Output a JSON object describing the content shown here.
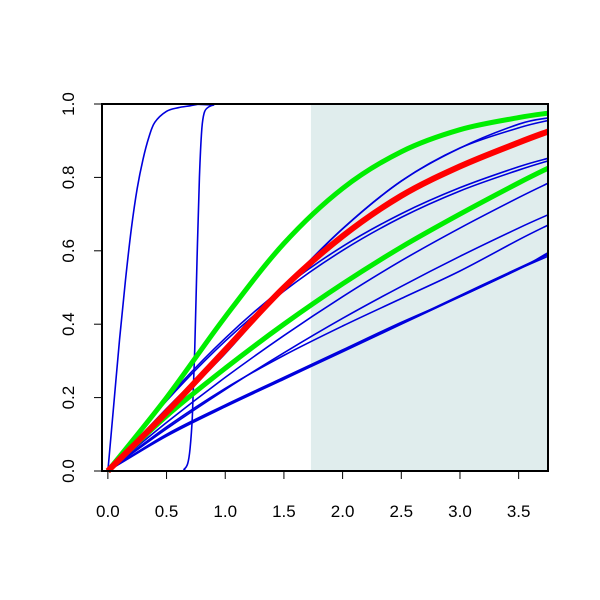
{
  "chart_data": {
    "type": "line",
    "title": "",
    "xlabel": "",
    "ylabel": "",
    "xlim": [
      -0.05,
      3.75
    ],
    "ylim": [
      0,
      1
    ],
    "x_ticks": [
      0.0,
      0.5,
      1.0,
      1.5,
      2.0,
      2.5,
      3.0,
      3.5
    ],
    "x_tick_labels": [
      "0.0",
      "0.5",
      "1.0",
      "1.5",
      "2.0",
      "2.5",
      "3.0",
      "3.5"
    ],
    "y_ticks": [
      0.0,
      0.2,
      0.4,
      0.6,
      0.8,
      1.0
    ],
    "y_tick_labels": [
      "0.0",
      "0.2",
      "0.4",
      "0.6",
      "0.8",
      "1.0"
    ],
    "shaded_region": {
      "x_from": 1.73,
      "x_to": 3.75,
      "color": "#e0eded"
    },
    "grid": false,
    "colors": {
      "blue": "#0000dd",
      "red": "#ff0000",
      "green": "#00ee00"
    },
    "series": [
      {
        "color": "#0000dd",
        "width": 1.6,
        "x": [
          0,
          0.05,
          0.1,
          0.15,
          0.2,
          0.25,
          0.3,
          0.35,
          0.4,
          0.5,
          0.6,
          0.7,
          0.8,
          1.0,
          3.75
        ],
        "y": [
          0,
          0.18,
          0.36,
          0.52,
          0.66,
          0.77,
          0.85,
          0.91,
          0.95,
          0.98,
          0.99,
          0.995,
          1.0,
          1.0,
          1.0
        ]
      },
      {
        "color": "#0000dd",
        "width": 1.6,
        "x": [
          0,
          0.6,
          0.65,
          0.68,
          0.7,
          0.72,
          0.74,
          0.76,
          0.78,
          0.8,
          0.82,
          0.85,
          0.9,
          1.0,
          3.75
        ],
        "y": [
          0,
          0,
          0.005,
          0.02,
          0.06,
          0.15,
          0.33,
          0.58,
          0.8,
          0.93,
          0.975,
          0.99,
          0.997,
          1.0,
          1.0
        ]
      },
      {
        "color": "#0000dd",
        "width": 1.6,
        "x": [
          0,
          0.5,
          1.0,
          1.5,
          2.0,
          2.5,
          3.0,
          3.5,
          3.75
        ],
        "y": [
          0,
          0.191,
          0.354,
          0.49,
          0.601,
          0.691,
          0.763,
          0.82,
          0.845
        ]
      },
      {
        "color": "#0000dd",
        "width": 1.6,
        "x": [
          0,
          0.5,
          1.0,
          1.5,
          2.0,
          2.5,
          3.0,
          3.5,
          3.75
        ],
        "y": [
          0,
          0.196,
          0.362,
          0.5,
          0.612,
          0.701,
          0.772,
          0.829,
          0.852
        ]
      },
      {
        "color": "#0000dd",
        "width": 1.6,
        "x": [
          0,
          0.5,
          1.0,
          1.5,
          2.0,
          2.5,
          3.0,
          3.5,
          3.75
        ],
        "y": [
          0,
          0.16,
          0.32,
          0.5,
          0.66,
          0.79,
          0.88,
          0.935,
          0.955
        ]
      },
      {
        "color": "#0000dd",
        "width": 1.6,
        "x": [
          0,
          0.5,
          1.0,
          1.5,
          2.0,
          2.5,
          3.0,
          3.5,
          3.75
        ],
        "y": [
          0,
          0.17,
          0.33,
          0.5,
          0.66,
          0.79,
          0.88,
          0.945,
          0.962
        ]
      },
      {
        "color": "#0000dd",
        "width": 1.6,
        "x": [
          0,
          0.5,
          1.0,
          1.5,
          2.0,
          2.5,
          3.0,
          3.5,
          3.75
        ],
        "y": [
          0,
          0.132,
          0.255,
          0.369,
          0.475,
          0.573,
          0.662,
          0.745,
          0.784
        ]
      },
      {
        "color": "#0000dd",
        "width": 1.6,
        "x": [
          0,
          0.5,
          1.0,
          1.5,
          2.0,
          2.5,
          3.0,
          3.5,
          3.75
        ],
        "y": [
          0,
          0.115,
          0.222,
          0.322,
          0.416,
          0.503,
          0.585,
          0.662,
          0.698
        ]
      },
      {
        "color": "#0000dd",
        "width": 1.6,
        "x": [
          0,
          0.5,
          1.0,
          1.5,
          2.0,
          2.5,
          3.0,
          3.5,
          3.75
        ],
        "y": [
          0,
          0.12,
          0.225,
          0.315,
          0.395,
          0.47,
          0.545,
          0.63,
          0.67
        ]
      },
      {
        "color": "#0000dd",
        "width": 1.6,
        "x": [
          0,
          0.5,
          1.0,
          1.5,
          2.0,
          2.5,
          3.0,
          3.5,
          3.75
        ],
        "y": [
          0,
          0.1,
          0.18,
          0.255,
          0.33,
          0.405,
          0.475,
          0.55,
          0.585
        ]
      },
      {
        "color": "#0000dd",
        "width": 1.6,
        "x": [
          0,
          0.5,
          1.0,
          1.5,
          2.0,
          2.5,
          3.0,
          3.5,
          3.75
        ],
        "y": [
          0,
          0.098,
          0.178,
          0.252,
          0.328,
          0.402,
          0.478,
          0.553,
          0.59
        ]
      },
      {
        "color": "#0000dd",
        "width": 1.6,
        "x": [
          0,
          0.5,
          1.0,
          1.5,
          2.0,
          2.5,
          3.0,
          3.5,
          3.75
        ],
        "y": [
          0,
          0.095,
          0.175,
          0.25,
          0.325,
          0.4,
          0.475,
          0.55,
          0.595
        ]
      },
      {
        "color": "#00ee00",
        "width": 5,
        "x": [
          0,
          0.5,
          1.0,
          1.5,
          2.0,
          2.5,
          3.0,
          3.5,
          3.75
        ],
        "y": [
          0,
          0.2,
          0.42,
          0.62,
          0.77,
          0.87,
          0.93,
          0.963,
          0.975
        ]
      },
      {
        "color": "#00ee00",
        "width": 5,
        "x": [
          0,
          0.5,
          1.0,
          1.5,
          2.0,
          2.5,
          3.0,
          3.5,
          3.75
        ],
        "y": [
          0,
          0.15,
          0.28,
          0.4,
          0.51,
          0.61,
          0.7,
          0.785,
          0.825
        ]
      },
      {
        "color": "#ff0000",
        "width": 6,
        "x": [
          0,
          0.5,
          1.0,
          1.5,
          2.0,
          2.5,
          3.0,
          3.5,
          3.75
        ],
        "y": [
          0,
          0.16,
          0.33,
          0.5,
          0.64,
          0.75,
          0.83,
          0.895,
          0.925
        ]
      }
    ]
  }
}
